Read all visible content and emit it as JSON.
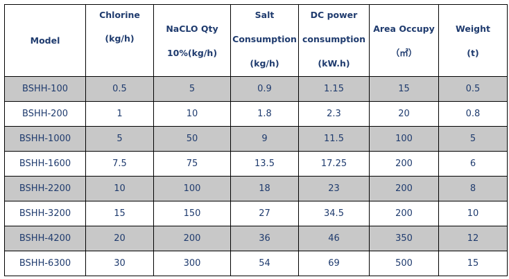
{
  "headers": [
    {
      "lines": [
        "Model"
      ]
    },
    {
      "lines": [
        "Chlorine",
        "(kg/h)"
      ]
    },
    {
      "lines": [
        "NaCLO Qty"
      ],
      "bold_prefix": "10%",
      "suffix": "(kg/h)"
    },
    {
      "lines": [
        "Salt",
        "Consumption",
        "(kg/h)"
      ]
    },
    {
      "lines": [
        "DC power",
        "consumption",
        "(kW.h)"
      ]
    },
    {
      "lines": [
        "Area Occupy",
        "（㎡）"
      ]
    },
    {
      "lines": [
        "Weight",
        "(t)"
      ]
    }
  ],
  "rows": [
    [
      "BSHH-100",
      "0.5",
      "5",
      "0.9",
      "1.15",
      "15",
      "0.5"
    ],
    [
      "BSHH-200",
      "1",
      "10",
      "1.8",
      "2.3",
      "20",
      "0.8"
    ],
    [
      "BSHH-1000",
      "5",
      "50",
      "9",
      "11.5",
      "100",
      "5"
    ],
    [
      "BSHH-1600",
      "7.5",
      "75",
      "13.5",
      "17.25",
      "200",
      "6"
    ],
    [
      "BSHH-2200",
      "10",
      "100",
      "18",
      "23",
      "200",
      "8"
    ],
    [
      "BSHH-3200",
      "15",
      "150",
      "27",
      "34.5",
      "200",
      "10"
    ],
    [
      "BSHH-4200",
      "20",
      "200",
      "36",
      "46",
      "350",
      "12"
    ],
    [
      "BSHH-6300",
      "30",
      "300",
      "54",
      "69",
      "500",
      "15"
    ]
  ],
  "colors": {
    "text": "#1f3b6e",
    "shaded_row": "#c8c8c8",
    "border": "#000000"
  }
}
